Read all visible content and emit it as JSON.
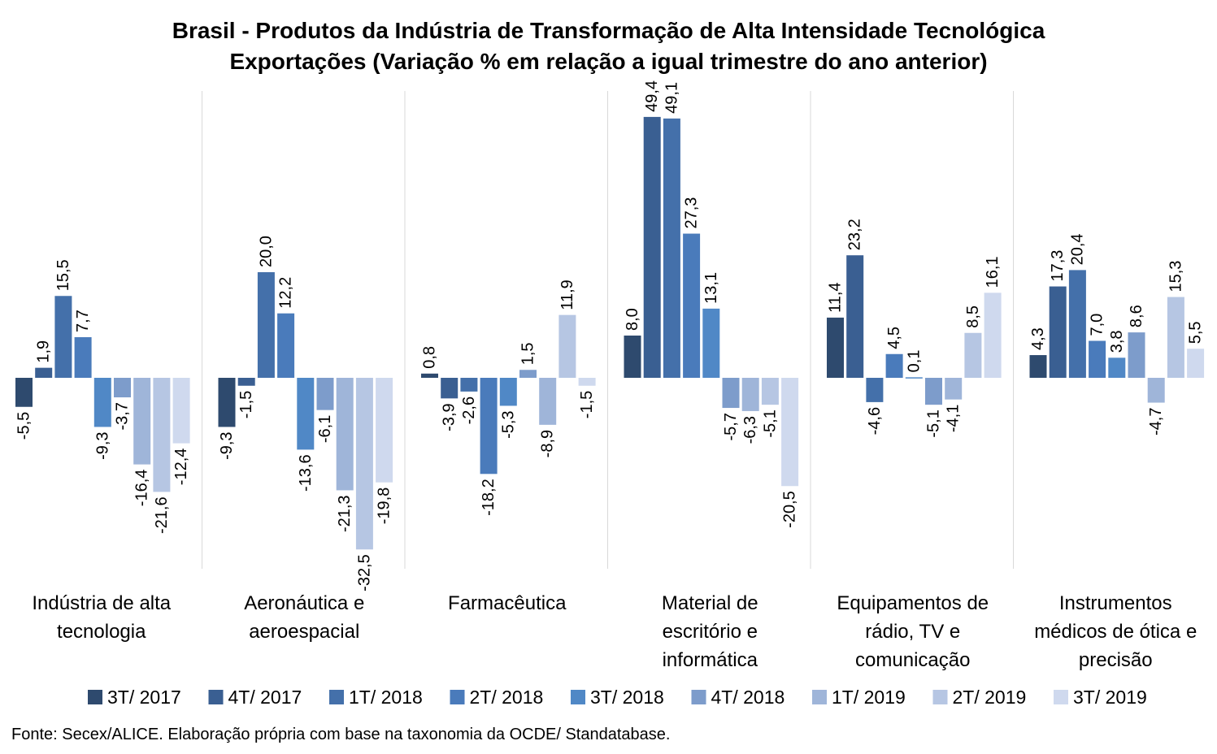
{
  "title_line1": "Brasil - Produtos da Indústria de Transformação de Alta Intensidade Tecnológica",
  "title_line2": "Exportações (Variação % em relação a igual trimestre do ano anterior)",
  "source": "Fonte: Secex/ALICE. Elaboração própria com base na taxonomia da OCDE/ Standatabase.",
  "chart_data": {
    "type": "bar",
    "title": "Brasil - Produtos da Indústria de Transformação de Alta Intensidade Tecnológica Exportações (Variação % em relação a igual trimestre do ano anterior)",
    "categories": [
      [
        "Indústria de alta",
        "tecnologia"
      ],
      [
        "Aeronáutica e",
        "aeroespacial"
      ],
      [
        "Farmacêutica"
      ],
      [
        "Material de",
        "escritório e",
        "informática"
      ],
      [
        "Equipamentos de",
        "rádio, TV e",
        "comunicação"
      ],
      [
        "Instrumentos",
        "médicos de ótica e",
        "precisão"
      ]
    ],
    "series": [
      {
        "name": "3T/ 2017",
        "color": "#2e4a6e",
        "values": [
          -5.5,
          -9.3,
          0.8,
          8.0,
          11.4,
          4.3
        ],
        "labels": [
          "-5,5",
          "-9,3",
          "0,8",
          "8,0",
          "11,4",
          "4,3"
        ]
      },
      {
        "name": "4T/ 2017",
        "color": "#3a5f92",
        "values": [
          1.9,
          -1.5,
          -3.9,
          49.4,
          23.2,
          17.3
        ],
        "labels": [
          "1,9",
          "-1,5",
          "-3,9",
          "49,4",
          "23,2",
          "17,3"
        ]
      },
      {
        "name": "1T/ 2018",
        "color": "#4470aa",
        "values": [
          15.5,
          20.0,
          -2.6,
          49.1,
          -4.6,
          20.4
        ],
        "labels": [
          "15,5",
          "20,0",
          "-2,6",
          "49,1",
          "-4,6",
          "20,4"
        ]
      },
      {
        "name": "2T/ 2018",
        "color": "#4a7bbb",
        "values": [
          7.7,
          12.2,
          -18.2,
          27.3,
          4.5,
          7.0
        ],
        "labels": [
          "7,7",
          "12,2",
          "-18,2",
          "27,3",
          "4,5",
          "7,0"
        ]
      },
      {
        "name": "3T/ 2018",
        "color": "#5088c6",
        "values": [
          -9.3,
          -13.6,
          -5.3,
          13.1,
          0.1,
          3.8
        ],
        "labels": [
          "-9,3",
          "-13,6",
          "-5,3",
          "13,1",
          "0,1",
          "3,8"
        ]
      },
      {
        "name": "4T/ 2018",
        "color": "#7d9ccb",
        "values": [
          -3.7,
          -6.1,
          1.5,
          -5.7,
          -5.1,
          8.6
        ],
        "labels": [
          "-3,7",
          "-6,1",
          "1,5",
          "-5,7",
          "-5,1",
          "8,6"
        ]
      },
      {
        "name": "1T/ 2019",
        "color": "#9fb5d9",
        "values": [
          -16.4,
          -21.3,
          -8.9,
          -6.3,
          -4.1,
          -4.7
        ],
        "labels": [
          "-16,4",
          "-21,3",
          "-8,9",
          "-6,3",
          "-4,1",
          "-4,7"
        ]
      },
      {
        "name": "2T/ 2019",
        "color": "#b6c6e3",
        "values": [
          -21.6,
          -32.5,
          11.9,
          -5.1,
          8.5,
          15.3
        ],
        "labels": [
          "-21,6",
          "-32,5",
          "11,9",
          "-5,1",
          "8,5",
          "15,3"
        ]
      },
      {
        "name": "3T/ 2019",
        "color": "#cfd9ee",
        "values": [
          -12.4,
          -19.8,
          -1.5,
          -20.5,
          16.1,
          5.5
        ],
        "labels": [
          "-12,4",
          "-19,8",
          "-1,5",
          "-20,5",
          "16,1",
          "5,5"
        ]
      }
    ],
    "ylim": [
      -34,
      54
    ],
    "legend_position": "bottom",
    "grid": false
  }
}
